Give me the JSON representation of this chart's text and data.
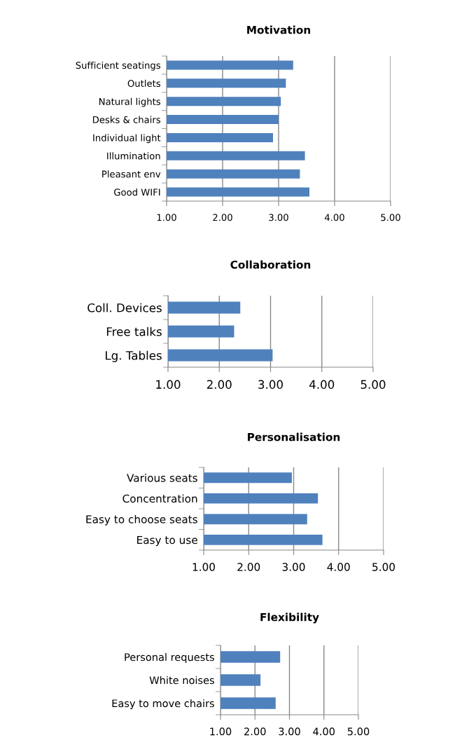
{
  "chart_data": [
    {
      "type": "bar",
      "orientation": "horizontal",
      "title": "Motivation",
      "categories": [
        "Sufficient seatings",
        "Outlets",
        "Natural lights",
        "Desks & chairs",
        "Individual light",
        "Illumination",
        "Pleasant env",
        "Good WIFI"
      ],
      "values": [
        3.26,
        3.13,
        3.04,
        3.0,
        2.9,
        3.47,
        3.38,
        3.55
      ],
      "color": "#4f81bd",
      "xlim": [
        1,
        5
      ],
      "xticks": [
        {
          "value": 1,
          "label": "1.00"
        },
        {
          "value": 2,
          "label": "2.00"
        },
        {
          "value": 3,
          "label": "3.00"
        },
        {
          "value": 4,
          "label": "4.00"
        },
        {
          "value": 5,
          "label": "5.00"
        }
      ],
      "grid": "x"
    },
    {
      "type": "bar",
      "orientation": "horizontal",
      "title": "Collaboration",
      "categories": [
        "Coll. Devices",
        "Free talks",
        "Lg. Tables"
      ],
      "values": [
        2.41,
        2.29,
        3.04
      ],
      "color": "#4f81bd",
      "xlim": [
        1,
        5
      ],
      "xticks": [
        {
          "value": 1,
          "label": "1.00"
        },
        {
          "value": 2,
          "label": "2.00"
        },
        {
          "value": 3,
          "label": "3.00"
        },
        {
          "value": 4,
          "label": "4.00"
        },
        {
          "value": 5,
          "label": "5.00"
        }
      ],
      "grid": "x"
    },
    {
      "type": "bar",
      "orientation": "horizontal",
      "title": "Personalisation",
      "categories": [
        "Various seats",
        "Concentration",
        "Easy to choose seats",
        "Easy to use"
      ],
      "values": [
        2.96,
        3.54,
        3.3,
        3.64
      ],
      "color": "#4f81bd",
      "xlim": [
        1,
        5
      ],
      "xticks": [
        {
          "value": 1,
          "label": "1.00"
        },
        {
          "value": 2,
          "label": "2.00"
        },
        {
          "value": 3,
          "label": "3.00"
        },
        {
          "value": 4,
          "label": "4.00"
        },
        {
          "value": 5,
          "label": "5.00"
        }
      ],
      "grid": "x"
    },
    {
      "type": "bar",
      "orientation": "horizontal",
      "title": "Flexibility",
      "categories": [
        "Personal requests",
        "White noises",
        "Easy to move chairs"
      ],
      "values": [
        2.73,
        2.16,
        2.6
      ],
      "color": "#4f81bd",
      "xlim": [
        1,
        5
      ],
      "xticks": [
        {
          "value": 1,
          "label": "1.00"
        },
        {
          "value": 2,
          "label": "2.00"
        },
        {
          "value": 3,
          "label": "3.00"
        },
        {
          "value": 4,
          "label": "4.00"
        },
        {
          "value": 5,
          "label": "5.00"
        }
      ],
      "grid": "x"
    }
  ]
}
